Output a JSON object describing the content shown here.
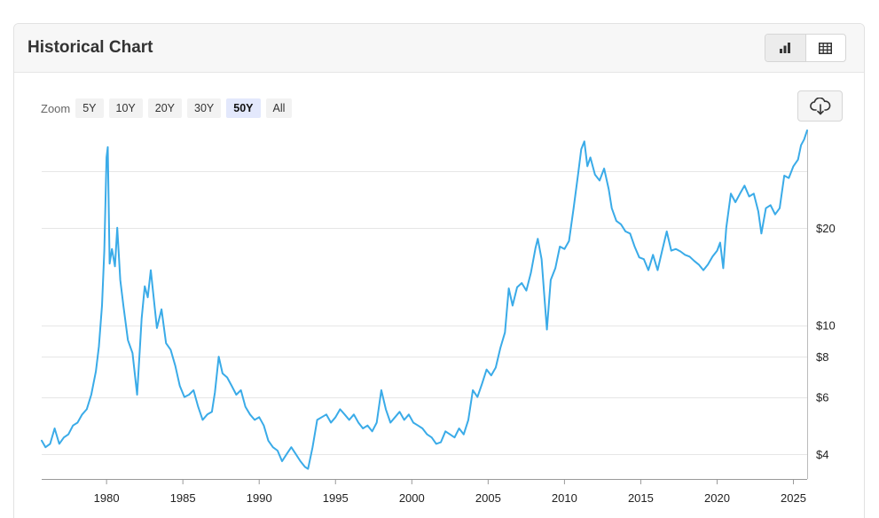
{
  "header": {
    "title": "Historical Chart",
    "icons": {
      "bar_view": "bar-chart-icon",
      "table_view": "table-icon",
      "download": "cloud-download-icon"
    }
  },
  "zoom": {
    "label": "Zoom",
    "options": [
      "5Y",
      "10Y",
      "20Y",
      "30Y",
      "50Y",
      "All"
    ],
    "selected": "50Y"
  },
  "colors": {
    "line": "#3aabe8",
    "grid": "#e6e6e6",
    "selected_zoom": "#e3e8fc"
  },
  "chart_data": {
    "type": "line",
    "title": "",
    "xlabel": "",
    "ylabel": "",
    "y_scale": "log",
    "y_ticks": [
      4,
      6,
      8,
      10,
      20
    ],
    "y_tick_labels": [
      "$4",
      "$6",
      "$8",
      "$10",
      "$20"
    ],
    "x_ticks": [
      1980,
      1985,
      1990,
      1995,
      2000,
      2005,
      2010,
      2015,
      2020,
      2025
    ],
    "x_tick_labels": [
      "1980",
      "1985",
      "1990",
      "1995",
      "2000",
      "2005",
      "2010",
      "2015",
      "2020",
      "2025"
    ],
    "xlim": [
      1975.75,
      2025.9
    ],
    "ylim": [
      3.35,
      40
    ],
    "grid": true,
    "series": [
      {
        "name": "",
        "x": [
          1975.75,
          1976.0,
          1976.3,
          1976.6,
          1976.9,
          1977.2,
          1977.5,
          1977.8,
          1978.1,
          1978.4,
          1978.7,
          1979.0,
          1979.3,
          1979.5,
          1979.7,
          1979.85,
          1980.0,
          1980.08,
          1980.2,
          1980.35,
          1980.55,
          1980.7,
          1980.9,
          1981.1,
          1981.4,
          1981.7,
          1982.0,
          1982.3,
          1982.5,
          1982.7,
          1982.9,
          1983.1,
          1983.3,
          1983.6,
          1983.9,
          1984.2,
          1984.5,
          1984.8,
          1985.1,
          1985.4,
          1985.7,
          1986.0,
          1986.3,
          1986.6,
          1986.9,
          1987.1,
          1987.35,
          1987.6,
          1987.9,
          1988.2,
          1988.5,
          1988.8,
          1989.1,
          1989.4,
          1989.7,
          1990.0,
          1990.3,
          1990.6,
          1990.9,
          1991.2,
          1991.5,
          1991.8,
          1992.1,
          1992.4,
          1992.7,
          1993.0,
          1993.2,
          1993.5,
          1993.8,
          1994.1,
          1994.4,
          1994.7,
          1995.0,
          1995.3,
          1995.6,
          1995.9,
          1996.2,
          1996.5,
          1996.8,
          1997.1,
          1997.4,
          1997.7,
          1998.0,
          1998.3,
          1998.6,
          1998.9,
          1999.2,
          1999.5,
          1999.8,
          2000.1,
          2000.4,
          2000.7,
          2001.0,
          2001.3,
          2001.6,
          2001.9,
          2002.2,
          2002.5,
          2002.8,
          2003.1,
          2003.4,
          2003.7,
          2004.0,
          2004.3,
          2004.6,
          2004.9,
          2005.2,
          2005.5,
          2005.8,
          2006.1,
          2006.35,
          2006.6,
          2006.9,
          2007.2,
          2007.5,
          2007.8,
          2008.1,
          2008.25,
          2008.5,
          2008.7,
          2008.85,
          2009.1,
          2009.4,
          2009.7,
          2010.0,
          2010.3,
          2010.6,
          2010.9,
          2011.1,
          2011.3,
          2011.5,
          2011.7,
          2012.0,
          2012.3,
          2012.6,
          2012.9,
          2013.1,
          2013.4,
          2013.7,
          2014.0,
          2014.3,
          2014.6,
          2014.9,
          2015.2,
          2015.5,
          2015.8,
          2016.1,
          2016.4,
          2016.7,
          2017.0,
          2017.3,
          2017.6,
          2017.9,
          2018.2,
          2018.5,
          2018.8,
          2019.1,
          2019.4,
          2019.7,
          2020.0,
          2020.2,
          2020.4,
          2020.6,
          2020.9,
          2021.2,
          2021.5,
          2021.8,
          2022.1,
          2022.4,
          2022.7,
          2022.9,
          2023.2,
          2023.5,
          2023.8,
          2024.1,
          2024.4,
          2024.7,
          2025.0,
          2025.3,
          2025.5,
          2025.7,
          2025.9
        ],
        "values": [
          4.4,
          4.2,
          4.3,
          4.8,
          4.3,
          4.5,
          4.6,
          4.9,
          5.0,
          5.3,
          5.5,
          6.1,
          7.2,
          8.6,
          11.5,
          17.0,
          33.0,
          35.5,
          15.5,
          17.2,
          15.2,
          20.0,
          13.8,
          11.5,
          9.0,
          8.2,
          6.1,
          10.5,
          13.2,
          12.2,
          14.8,
          12.0,
          9.8,
          11.2,
          8.8,
          8.4,
          7.5,
          6.5,
          6.0,
          6.1,
          6.3,
          5.6,
          5.1,
          5.3,
          5.4,
          6.2,
          8.0,
          7.1,
          6.9,
          6.5,
          6.1,
          6.3,
          5.6,
          5.3,
          5.1,
          5.2,
          4.9,
          4.4,
          4.2,
          4.1,
          3.8,
          4.0,
          4.2,
          4.0,
          3.8,
          3.65,
          3.6,
          4.2,
          5.1,
          5.2,
          5.3,
          5.0,
          5.2,
          5.5,
          5.3,
          5.1,
          5.3,
          5.0,
          4.8,
          4.9,
          4.7,
          5.0,
          6.3,
          5.5,
          5.0,
          5.2,
          5.4,
          5.1,
          5.3,
          5.0,
          4.9,
          4.8,
          4.6,
          4.5,
          4.3,
          4.35,
          4.7,
          4.6,
          4.5,
          4.8,
          4.6,
          5.1,
          6.3,
          6.0,
          6.6,
          7.3,
          7.0,
          7.4,
          8.5,
          9.5,
          13.0,
          11.5,
          13.1,
          13.5,
          12.8,
          14.5,
          17.3,
          18.5,
          16.0,
          12.0,
          9.7,
          13.8,
          15.0,
          17.5,
          17.2,
          18.2,
          23.0,
          29.5,
          35.0,
          37.0,
          31.0,
          33.0,
          29.2,
          28.0,
          30.5,
          26.3,
          23.0,
          21.0,
          20.5,
          19.5,
          19.2,
          17.5,
          16.2,
          16.0,
          14.8,
          16.5,
          14.8,
          17.0,
          19.5,
          17.0,
          17.2,
          16.9,
          16.5,
          16.3,
          15.8,
          15.4,
          14.8,
          15.4,
          16.3,
          17.0,
          18.0,
          15.0,
          20.0,
          25.5,
          24.0,
          25.5,
          27.0,
          25.0,
          25.5,
          22.5,
          19.2,
          23.0,
          23.5,
          22.0,
          23.0,
          29.0,
          28.5,
          31.0,
          32.5,
          36.0,
          37.5,
          40.0
        ]
      }
    ]
  }
}
